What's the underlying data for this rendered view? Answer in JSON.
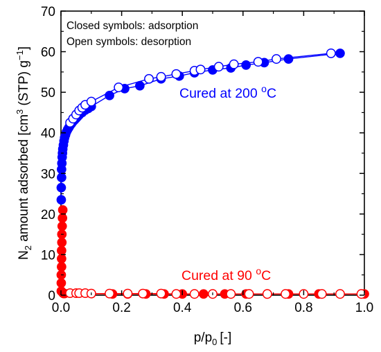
{
  "chart_data": {
    "type": "scatter",
    "title": "",
    "xlabel": "p/p",
    "xlabel_sub": "0",
    "xlabel_unit": "[-]",
    "ylabel_parts": [
      "N",
      "2",
      " amount adsorbed [cm",
      "3",
      " (STP) g",
      "−1",
      "]"
    ],
    "xlim": [
      0,
      1.0
    ],
    "ylim": [
      0,
      70
    ],
    "xticks": [
      "0.0",
      "0.2",
      "0.4",
      "0.6",
      "0.8",
      "1.0"
    ],
    "yticks": [
      "0",
      "10",
      "20",
      "30",
      "40",
      "50",
      "60",
      "70"
    ],
    "grid": false,
    "annotations": [
      "Closed symbols: adsorption",
      "Open symbols: desorption"
    ],
    "series": [
      {
        "name": "Cured at 200 °C",
        "label_text": "Cured at 200 ",
        "label_sup": "o",
        "label_unit": "C",
        "color": "#0000ff",
        "adsorption": {
          "x": [
            0.001,
            0.001,
            0.002,
            0.002,
            0.003,
            0.004,
            0.005,
            0.006,
            0.008,
            0.01,
            0.012,
            0.015,
            0.018,
            0.022,
            0.026,
            0.03,
            0.035,
            0.04,
            0.045,
            0.05,
            0.055,
            0.06,
            0.07,
            0.08,
            0.09,
            0.1,
            0.16,
            0.21,
            0.26,
            0.33,
            0.39,
            0.44,
            0.5,
            0.56,
            0.61,
            0.67,
            0.75,
            0.92
          ],
          "y": [
            23.5,
            26.5,
            29,
            31,
            32.5,
            34,
            35,
            36,
            37,
            38,
            38.8,
            39.5,
            40.2,
            40.8,
            41.3,
            41.8,
            42.3,
            42.8,
            43.2,
            43.6,
            44,
            44.4,
            45,
            45.6,
            46,
            46.5,
            49.2,
            50.9,
            51.6,
            53.3,
            54,
            54.8,
            55.5,
            56,
            56.7,
            57.3,
            58.2,
            59.6
          ]
        },
        "desorption": {
          "x": [
            0.03,
            0.04,
            0.05,
            0.06,
            0.07,
            0.08,
            0.1,
            0.19,
            0.29,
            0.33,
            0.38,
            0.44,
            0.46,
            0.52,
            0.57,
            0.65,
            0.71,
            0.89
          ],
          "y": [
            42.5,
            43.5,
            44.5,
            45.5,
            46.2,
            46.9,
            47.7,
            51.2,
            53.3,
            53.8,
            54.5,
            55.3,
            55.6,
            56.3,
            56.9,
            57.5,
            58.2,
            59.6
          ]
        }
      },
      {
        "name": "Cured at 90 °C",
        "label_text": "Cured at 90 ",
        "label_sup": "o",
        "label_unit": "C",
        "color": "#ff0000",
        "adsorption": {
          "x": [
            0.001,
            0.001,
            0.001,
            0.002,
            0.002,
            0.002,
            0.003,
            0.003,
            0.004,
            0.005,
            0.006,
            0.007,
            0.009,
            0.012,
            0.17,
            0.22,
            0.28,
            0.34,
            0.4,
            0.47,
            0.54,
            0.61,
            0.68,
            0.75,
            0.85,
            1.0
          ],
          "y": [
            1,
            3,
            5,
            7,
            9,
            11,
            13,
            15,
            17,
            19,
            21,
            0.5,
            0.4,
            0.4,
            0.3,
            0.3,
            0.3,
            0.3,
            0.3,
            0.3,
            0.3,
            0.3,
            0.3,
            0.3,
            0.3,
            0.3
          ]
        },
        "desorption": {
          "x": [
            0.03,
            0.05,
            0.06,
            0.08,
            0.1,
            0.16,
            0.22,
            0.27,
            0.33,
            0.38,
            0.44,
            0.5,
            0.56,
            0.62,
            0.68,
            0.74,
            0.8,
            0.86,
            0.92,
            0.99
          ],
          "y": [
            0.5,
            0.5,
            0.5,
            0.5,
            0.4,
            0.4,
            0.4,
            0.4,
            0.4,
            0.3,
            0.3,
            0.3,
            0.3,
            0.3,
            0.3,
            0.3,
            0.3,
            0.3,
            0.3,
            0.3
          ]
        }
      }
    ]
  }
}
